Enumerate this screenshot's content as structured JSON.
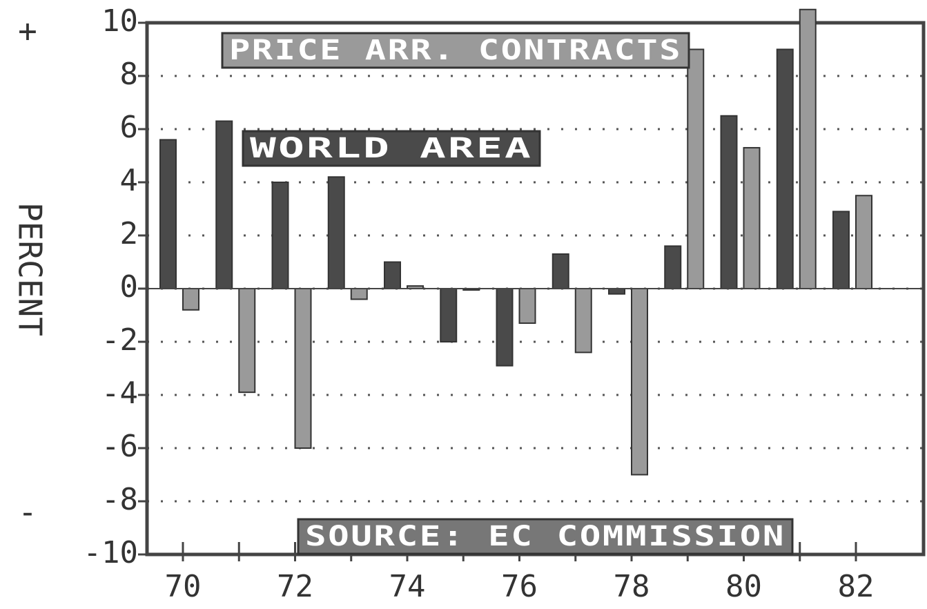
{
  "chart_data": {
    "type": "bar",
    "ylabel": "PERCENT",
    "ylabel_top": "+",
    "ylabel_bottom": "-",
    "source": "SOURCE: EC COMMISSION",
    "categories": [
      "70",
      null,
      "72",
      null,
      "74",
      null,
      "76",
      null,
      "78",
      null,
      "80",
      null,
      "82"
    ],
    "series": [
      {
        "name": "PRICE ARR. CONTRACTS",
        "color": "#9a9a9a",
        "values": [
          -0.8,
          -3.9,
          -6.0,
          -0.4,
          0.1,
          0,
          -1.3,
          -2.4,
          -7.0,
          9.0,
          5.3,
          10.5,
          3.5
        ]
      },
      {
        "name": "WORLD AREA",
        "color": "#4a4a4a",
        "values": [
          5.6,
          6.3,
          4.0,
          4.2,
          1.0,
          -2.0,
          -2.9,
          1.3,
          -0.2,
          1.6,
          6.5,
          9.0,
          2.9
        ]
      }
    ],
    "ylim": [
      -10,
      10
    ],
    "yticks": [
      -10,
      -8,
      -6,
      -4,
      -2,
      0,
      2,
      4,
      6,
      8,
      10
    ],
    "grid": true
  }
}
